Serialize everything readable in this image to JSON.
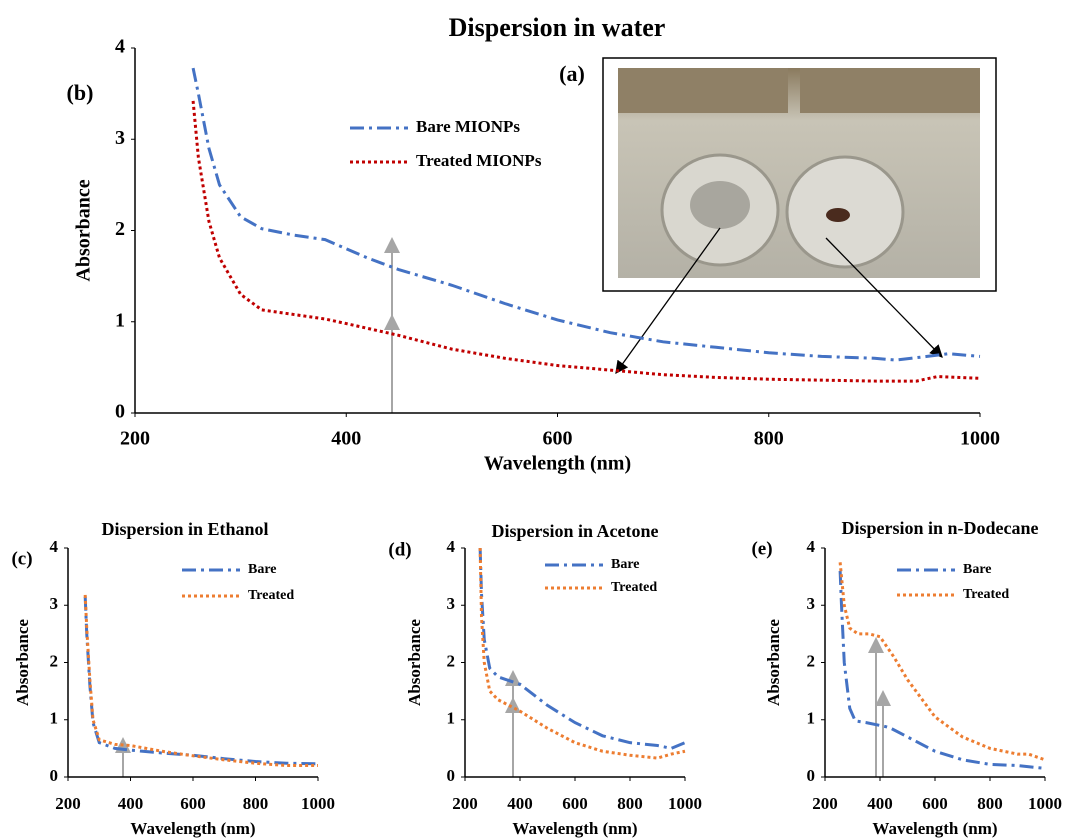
{
  "chart_data": [
    {
      "type": "line",
      "title": "Dispersion in water",
      "panel_label": "(b)",
      "inset_label": "(a)",
      "x_label": "Wavelength (nm)",
      "y_label": "Absorbance",
      "xlim": [
        200,
        1000
      ],
      "xticks": [
        200,
        400,
        600,
        800,
        1000
      ],
      "ylim": [
        0,
        4
      ],
      "yticks": [
        0,
        1,
        2,
        3,
        4
      ],
      "series": [
        {
          "name": "Bare MIONPs",
          "color": "#4472c4",
          "line_style": "dash-dot",
          "x": [
            255,
            260,
            270,
            280,
            300,
            320,
            350,
            380,
            400,
            420,
            450,
            500,
            550,
            600,
            650,
            700,
            750,
            800,
            850,
            900,
            920,
            950,
            970,
            1000
          ],
          "values": [
            3.78,
            3.5,
            2.9,
            2.5,
            2.15,
            2.02,
            1.95,
            1.9,
            1.8,
            1.7,
            1.57,
            1.4,
            1.2,
            1.02,
            0.88,
            0.78,
            0.72,
            0.66,
            0.62,
            0.6,
            0.58,
            0.62,
            0.65,
            0.62
          ]
        },
        {
          "name": "Treated MIONPs",
          "color": "#c00000",
          "line_style": "dotted",
          "x": [
            255,
            260,
            270,
            280,
            300,
            320,
            350,
            380,
            400,
            450,
            500,
            550,
            600,
            650,
            700,
            750,
            800,
            850,
            900,
            940,
            960,
            1000
          ],
          "values": [
            3.42,
            2.8,
            2.1,
            1.7,
            1.3,
            1.13,
            1.08,
            1.03,
            0.98,
            0.85,
            0.7,
            0.6,
            0.52,
            0.47,
            0.42,
            0.39,
            0.37,
            0.36,
            0.35,
            0.35,
            0.4,
            0.38
          ]
        }
      ]
    },
    {
      "type": "line",
      "title": "Dispersion in Ethanol",
      "panel_label": "(c)",
      "x_label": "Wavelength (nm)",
      "y_label": "Absorbance",
      "xlim": [
        200,
        1000
      ],
      "xticks": [
        200,
        400,
        600,
        800,
        1000
      ],
      "ylim": [
        0,
        4
      ],
      "yticks": [
        0,
        1,
        2,
        3,
        4
      ],
      "series": [
        {
          "name": "Bare",
          "color": "#4472c4",
          "line_style": "dash-dot",
          "x": [
            255,
            260,
            270,
            280,
            300,
            350,
            400,
            500,
            600,
            700,
            800,
            900,
            1000
          ],
          "values": [
            3.15,
            2.5,
            1.6,
            0.95,
            0.6,
            0.5,
            0.47,
            0.42,
            0.38,
            0.32,
            0.27,
            0.24,
            0.23
          ]
        },
        {
          "name": "Treated",
          "color": "#ed7d31",
          "line_style": "dotted",
          "x": [
            255,
            260,
            270,
            280,
            300,
            350,
            400,
            500,
            600,
            700,
            800,
            900,
            1000
          ],
          "values": [
            3.18,
            2.6,
            1.7,
            1.0,
            0.65,
            0.57,
            0.55,
            0.45,
            0.37,
            0.3,
            0.24,
            0.2,
            0.2
          ]
        }
      ]
    },
    {
      "type": "line",
      "title": "Dispersion in Acetone",
      "panel_label": "(d)",
      "x_label": "Wavelength (nm)",
      "y_label": "Absorbance",
      "xlim": [
        200,
        1000
      ],
      "xticks": [
        200,
        400,
        600,
        800,
        1000
      ],
      "ylim": [
        0,
        4
      ],
      "yticks": [
        0,
        1,
        2,
        3,
        4
      ],
      "series": [
        {
          "name": "Bare",
          "color": "#4472c4",
          "line_style": "dash-dot",
          "x": [
            255,
            260,
            270,
            290,
            320,
            350,
            400,
            500,
            600,
            700,
            800,
            900,
            950,
            1000
          ],
          "values": [
            4.0,
            3.2,
            2.4,
            1.9,
            1.75,
            1.7,
            1.62,
            1.25,
            0.95,
            0.72,
            0.6,
            0.55,
            0.5,
            0.6
          ]
        },
        {
          "name": "Treated",
          "color": "#ed7d31",
          "line_style": "dotted",
          "x": [
            255,
            260,
            270,
            290,
            320,
            400,
            500,
            600,
            700,
            800,
            900,
            950,
            1000
          ],
          "values": [
            4.0,
            2.8,
            2.0,
            1.5,
            1.35,
            1.15,
            0.85,
            0.6,
            0.45,
            0.38,
            0.33,
            0.4,
            0.45
          ]
        }
      ]
    },
    {
      "type": "line",
      "title": "Dispersion in n-Dodecane",
      "panel_label": "(e)",
      "x_label": "Wavelength (nm)",
      "y_label": "Absorbance",
      "xlim": [
        200,
        1000
      ],
      "xticks": [
        200,
        400,
        600,
        800,
        1000
      ],
      "ylim": [
        0,
        4
      ],
      "yticks": [
        0,
        1,
        2,
        3,
        4
      ],
      "series": [
        {
          "name": "Bare",
          "color": "#4472c4",
          "line_style": "dash-dot",
          "x": [
            255,
            260,
            270,
            290,
            310,
            350,
            400,
            420,
            440,
            500,
            600,
            700,
            800,
            900,
            1000
          ],
          "values": [
            3.6,
            3.0,
            2.0,
            1.2,
            0.98,
            0.95,
            0.9,
            0.88,
            0.85,
            0.7,
            0.45,
            0.3,
            0.22,
            0.2,
            0.15
          ]
        },
        {
          "name": "Treated",
          "color": "#ed7d31",
          "line_style": "dotted",
          "x": [
            255,
            260,
            270,
            290,
            320,
            360,
            400,
            450,
            500,
            600,
            700,
            800,
            900,
            940,
            1000
          ],
          "values": [
            3.75,
            3.5,
            3.0,
            2.6,
            2.5,
            2.5,
            2.45,
            2.1,
            1.7,
            1.05,
            0.7,
            0.5,
            0.4,
            0.4,
            0.3
          ]
        }
      ]
    }
  ]
}
